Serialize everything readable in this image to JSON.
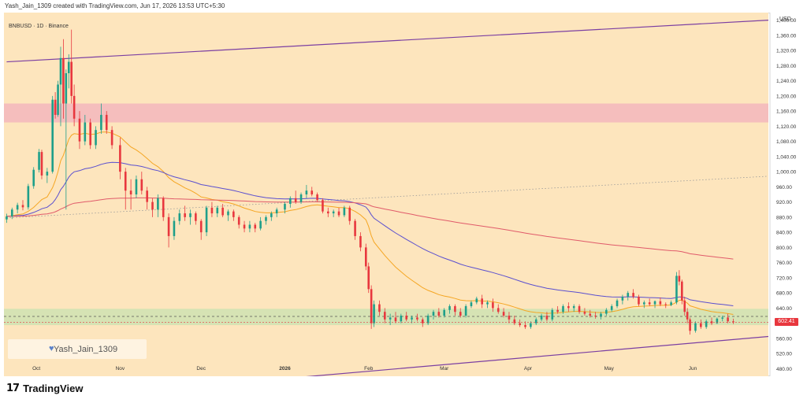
{
  "header": {
    "created_by": "Yash_Jain_1309 created with TradingView.com, Jun 17, 2026 13:53 UTC+5:30"
  },
  "symbol": {
    "title": "BNBUSD · 1D · Binance",
    "currency": "USD"
  },
  "watermark": {
    "text": "Yash_Jain_1309",
    "icon": "heart-icon"
  },
  "brand": {
    "logo": "TradingView logo",
    "name": "TradingView"
  },
  "last_price": {
    "label": "602.41",
    "color": "#e8373e"
  },
  "colors": {
    "background": "#fde5bd",
    "up": "#1e9f8a",
    "down": "#e8373e",
    "ema_fast": "#f5a623",
    "ema_mid": "#5a4fcf",
    "ema_slow": "#e05a6a",
    "channel": "#7b3fa2",
    "resistance_zone": "#f3b7bd",
    "support_zone": "#cfe3b3"
  },
  "chart_data": {
    "type": "candlestick",
    "title": "BNBUSD · 1D · Binance",
    "x_tick_labels": [
      "Oct",
      "Nov",
      "Dec",
      "2026",
      "Feb",
      "Mar",
      "Apr",
      "May",
      "Jun"
    ],
    "y_tick_labels": [
      "1,400.00",
      "1,360.00",
      "1,320.00",
      "1,280.00",
      "1,240.00",
      "1,200.00",
      "1,160.00",
      "1,120.00",
      "1,080.00",
      "1,040.00",
      "1,000.00",
      "960.00",
      "920.00",
      "880.00",
      "840.00",
      "800.00",
      "760.00",
      "720.00",
      "680.00",
      "640.00",
      "600.00",
      "560.00",
      "520.00",
      "480.00"
    ],
    "ylim": [
      460,
      1420
    ],
    "grid": false,
    "last_price": 602.41,
    "zones": [
      {
        "name": "resistance",
        "low": 1130,
        "high": 1180
      },
      {
        "name": "support",
        "low": 595,
        "high": 638
      }
    ],
    "channel": {
      "upper": {
        "start": [
          "2025-09-20",
          1290
        ],
        "end": [
          "2026-06-29",
          1400
        ]
      },
      "lower": {
        "start": [
          "2025-09-20",
          390
        ],
        "end": [
          "2026-06-29",
          565
        ]
      },
      "mid": {
        "start": [
          "2025-09-20",
          878
        ],
        "end": [
          "2026-06-29",
          988
        ]
      }
    },
    "candles": [
      [
        "2025-09-20",
        874,
        889,
        865,
        882
      ],
      [
        "2025-09-22",
        882,
        905,
        875,
        900
      ],
      [
        "2025-09-24",
        900,
        918,
        890,
        912
      ],
      [
        "2025-09-26",
        912,
        925,
        898,
        906
      ],
      [
        "2025-09-28",
        906,
        968,
        900,
        962
      ],
      [
        "2025-09-30",
        962,
        1012,
        955,
        1005
      ],
      [
        "2025-10-02",
        1005,
        1060,
        998,
        1052
      ],
      [
        "2025-10-03",
        1052,
        1058,
        980,
        990
      ],
      [
        "2025-10-05",
        990,
        1010,
        970,
        1000
      ],
      [
        "2025-10-07",
        1000,
        1200,
        995,
        1190
      ],
      [
        "2025-10-08",
        1190,
        1210,
        1140,
        1150
      ],
      [
        "2025-10-09",
        1150,
        1240,
        1145,
        1230
      ],
      [
        "2025-10-10",
        1230,
        1330,
        1120,
        1300
      ],
      [
        "2025-10-11",
        1300,
        1350,
        1140,
        1180
      ],
      [
        "2025-10-12",
        1180,
        1270,
        900,
        1260
      ],
      [
        "2025-10-13",
        1260,
        1310,
        1220,
        1290
      ],
      [
        "2025-10-14",
        1290,
        1375,
        1180,
        1200
      ],
      [
        "2025-10-15",
        1200,
        1230,
        1120,
        1140
      ],
      [
        "2025-10-17",
        1140,
        1160,
        1060,
        1080
      ],
      [
        "2025-10-19",
        1080,
        1150,
        1070,
        1130
      ],
      [
        "2025-10-21",
        1130,
        1140,
        1060,
        1070
      ],
      [
        "2025-10-23",
        1070,
        1120,
        1060,
        1110
      ],
      [
        "2025-10-25",
        1110,
        1180,
        1100,
        1150
      ],
      [
        "2025-10-27",
        1150,
        1160,
        1100,
        1110
      ],
      [
        "2025-10-29",
        1110,
        1120,
        1060,
        1070
      ],
      [
        "2025-11-01",
        1070,
        1090,
        980,
        1000
      ],
      [
        "2025-11-03",
        1000,
        1010,
        900,
        950
      ],
      [
        "2025-11-05",
        950,
        980,
        900,
        940
      ],
      [
        "2025-11-07",
        940,
        990,
        930,
        980
      ],
      [
        "2025-11-09",
        980,
        1000,
        940,
        950
      ],
      [
        "2025-11-11",
        950,
        960,
        900,
        920
      ],
      [
        "2025-11-13",
        920,
        930,
        880,
        900
      ],
      [
        "2025-11-15",
        900,
        940,
        880,
        930
      ],
      [
        "2025-11-17",
        930,
        935,
        870,
        880
      ],
      [
        "2025-11-19",
        880,
        890,
        800,
        830
      ],
      [
        "2025-11-21",
        830,
        880,
        820,
        870
      ],
      [
        "2025-11-23",
        870,
        900,
        860,
        890
      ],
      [
        "2025-11-25",
        890,
        910,
        870,
        880
      ],
      [
        "2025-11-27",
        880,
        900,
        860,
        890
      ],
      [
        "2025-11-29",
        890,
        895,
        860,
        870
      ],
      [
        "2025-12-01",
        870,
        875,
        820,
        840
      ],
      [
        "2025-12-03",
        840,
        910,
        830,
        905
      ],
      [
        "2025-12-05",
        905,
        920,
        880,
        890
      ],
      [
        "2025-12-07",
        890,
        910,
        880,
        905
      ],
      [
        "2025-12-09",
        905,
        915,
        880,
        885
      ],
      [
        "2025-12-11",
        885,
        900,
        870,
        895
      ],
      [
        "2025-12-13",
        895,
        900,
        870,
        880
      ],
      [
        "2025-12-15",
        880,
        885,
        850,
        860
      ],
      [
        "2025-12-17",
        860,
        870,
        840,
        850
      ],
      [
        "2025-12-19",
        850,
        870,
        840,
        860
      ],
      [
        "2025-12-21",
        860,
        865,
        840,
        850
      ],
      [
        "2025-12-23",
        850,
        880,
        845,
        870
      ],
      [
        "2025-12-25",
        870,
        885,
        860,
        880
      ],
      [
        "2025-12-27",
        880,
        895,
        870,
        890
      ],
      [
        "2025-12-29",
        890,
        905,
        880,
        900
      ],
      [
        "2026-01-01",
        900,
        920,
        890,
        915
      ],
      [
        "2026-01-03",
        915,
        935,
        905,
        930
      ],
      [
        "2026-01-05",
        930,
        950,
        915,
        920
      ],
      [
        "2026-01-07",
        920,
        945,
        915,
        940
      ],
      [
        "2026-01-09",
        940,
        965,
        930,
        950
      ],
      [
        "2026-01-11",
        950,
        960,
        935,
        940
      ],
      [
        "2026-01-13",
        940,
        945,
        920,
        925
      ],
      [
        "2026-01-15",
        925,
        930,
        890,
        895
      ],
      [
        "2026-01-17",
        895,
        905,
        880,
        890
      ],
      [
        "2026-01-19",
        890,
        900,
        880,
        895
      ],
      [
        "2026-01-21",
        895,
        905,
        880,
        885
      ],
      [
        "2026-01-23",
        885,
        910,
        880,
        905
      ],
      [
        "2026-01-25",
        905,
        910,
        860,
        870
      ],
      [
        "2026-01-27",
        870,
        875,
        820,
        830
      ],
      [
        "2026-01-29",
        830,
        840,
        790,
        800
      ],
      [
        "2026-01-31",
        800,
        810,
        740,
        750
      ],
      [
        "2026-02-01",
        750,
        760,
        680,
        690
      ],
      [
        "2026-02-02",
        690,
        700,
        585,
        600
      ],
      [
        "2026-02-03",
        600,
        660,
        590,
        650
      ],
      [
        "2026-02-05",
        650,
        660,
        620,
        630
      ],
      [
        "2026-02-07",
        630,
        640,
        600,
        610
      ],
      [
        "2026-02-09",
        610,
        625,
        595,
        615
      ],
      [
        "2026-02-11",
        615,
        630,
        600,
        605
      ],
      [
        "2026-02-13",
        605,
        625,
        600,
        620
      ],
      [
        "2026-02-15",
        620,
        630,
        605,
        610
      ],
      [
        "2026-02-17",
        610,
        620,
        600,
        615
      ],
      [
        "2026-02-19",
        615,
        625,
        605,
        610
      ],
      [
        "2026-02-21",
        610,
        615,
        590,
        600
      ],
      [
        "2026-02-23",
        600,
        625,
        595,
        620
      ],
      [
        "2026-02-25",
        620,
        635,
        610,
        630
      ],
      [
        "2026-02-27",
        630,
        640,
        615,
        620
      ],
      [
        "2026-03-01",
        620,
        640,
        615,
        635
      ],
      [
        "2026-03-03",
        635,
        650,
        625,
        645
      ],
      [
        "2026-03-05",
        645,
        650,
        620,
        630
      ],
      [
        "2026-03-07",
        630,
        640,
        615,
        620
      ],
      [
        "2026-03-09",
        620,
        650,
        615,
        645
      ],
      [
        "2026-03-11",
        645,
        660,
        640,
        655
      ],
      [
        "2026-03-13",
        655,
        670,
        650,
        665
      ],
      [
        "2026-03-15",
        665,
        675,
        640,
        650
      ],
      [
        "2026-03-17",
        650,
        660,
        640,
        655
      ],
      [
        "2026-03-19",
        655,
        665,
        630,
        640
      ],
      [
        "2026-03-21",
        640,
        650,
        625,
        630
      ],
      [
        "2026-03-23",
        630,
        640,
        615,
        620
      ],
      [
        "2026-03-25",
        620,
        630,
        600,
        610
      ],
      [
        "2026-03-27",
        610,
        620,
        595,
        600
      ],
      [
        "2026-03-29",
        600,
        610,
        590,
        595
      ],
      [
        "2026-03-31",
        595,
        605,
        585,
        590
      ],
      [
        "2026-04-02",
        590,
        605,
        585,
        600
      ],
      [
        "2026-04-04",
        600,
        615,
        595,
        610
      ],
      [
        "2026-04-06",
        610,
        625,
        605,
        620
      ],
      [
        "2026-04-08",
        620,
        630,
        605,
        610
      ],
      [
        "2026-04-10",
        610,
        640,
        605,
        635
      ],
      [
        "2026-04-12",
        635,
        645,
        625,
        630
      ],
      [
        "2026-04-14",
        630,
        650,
        625,
        645
      ],
      [
        "2026-04-16",
        645,
        655,
        630,
        640
      ],
      [
        "2026-04-18",
        640,
        650,
        630,
        645
      ],
      [
        "2026-04-20",
        645,
        650,
        625,
        630
      ],
      [
        "2026-04-22",
        630,
        640,
        620,
        625
      ],
      [
        "2026-04-24",
        625,
        635,
        615,
        620
      ],
      [
        "2026-04-26",
        620,
        630,
        612,
        618
      ],
      [
        "2026-04-28",
        618,
        630,
        610,
        625
      ],
      [
        "2026-04-30",
        625,
        640,
        620,
        635
      ],
      [
        "2026-05-02",
        635,
        650,
        630,
        645
      ],
      [
        "2026-05-04",
        645,
        665,
        640,
        660
      ],
      [
        "2026-05-06",
        660,
        675,
        650,
        670
      ],
      [
        "2026-05-08",
        670,
        685,
        660,
        680
      ],
      [
        "2026-05-10",
        680,
        690,
        665,
        670
      ],
      [
        "2026-05-12",
        670,
        675,
        645,
        650
      ],
      [
        "2026-05-14",
        650,
        660,
        640,
        655
      ],
      [
        "2026-05-16",
        655,
        665,
        645,
        650
      ],
      [
        "2026-05-18",
        650,
        660,
        640,
        658
      ],
      [
        "2026-05-20",
        658,
        668,
        645,
        650
      ],
      [
        "2026-05-22",
        650,
        655,
        640,
        648
      ],
      [
        "2026-05-24",
        648,
        660,
        645,
        655
      ],
      [
        "2026-05-26",
        655,
        735,
        650,
        725
      ],
      [
        "2026-05-27",
        725,
        740,
        700,
        710
      ],
      [
        "2026-05-28",
        710,
        715,
        650,
        660
      ],
      [
        "2026-05-29",
        660,
        670,
        620,
        630
      ],
      [
        "2026-05-30",
        630,
        640,
        600,
        610
      ],
      [
        "2026-05-31",
        610,
        615,
        570,
        580
      ],
      [
        "2026-06-02",
        580,
        605,
        575,
        600
      ],
      [
        "2026-06-04",
        600,
        610,
        585,
        590
      ],
      [
        "2026-06-06",
        590,
        610,
        585,
        605
      ],
      [
        "2026-06-08",
        605,
        615,
        595,
        600
      ],
      [
        "2026-06-10",
        600,
        615,
        598,
        612
      ],
      [
        "2026-06-12",
        612,
        620,
        605,
        615
      ],
      [
        "2026-06-14",
        615,
        625,
        600,
        605
      ],
      [
        "2026-06-16",
        605,
        612,
        598,
        602.41
      ]
    ],
    "series": [
      {
        "type": "line",
        "periods": 20
      },
      {
        "type": "line",
        "periods": 50
      },
      {
        "type": "line",
        "periods": 200
      }
    ]
  }
}
